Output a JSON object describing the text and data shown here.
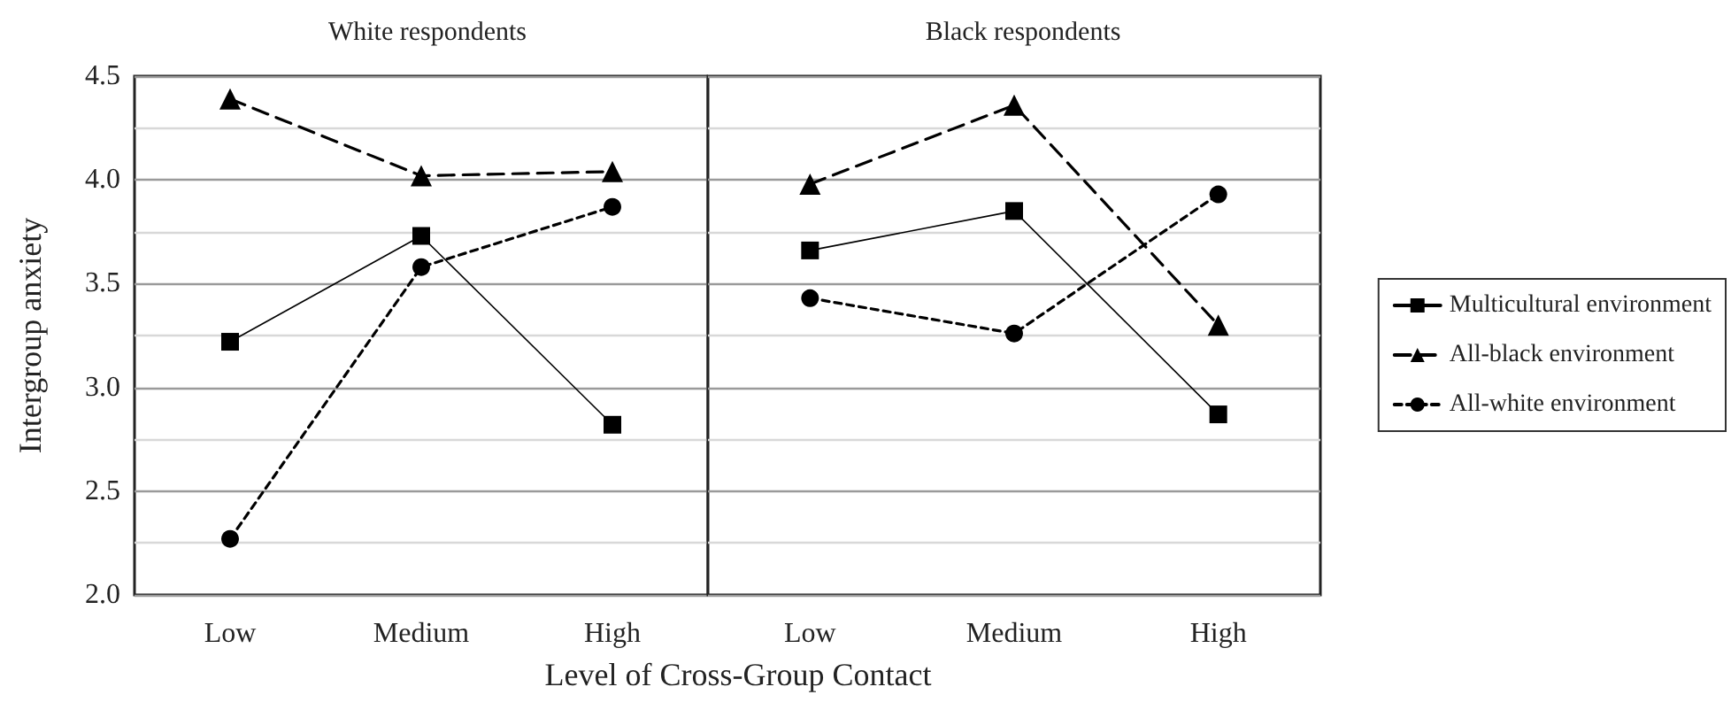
{
  "chart_data": [
    {
      "type": "line",
      "title": "White respondents",
      "xlabel": "Level of Cross-Group Contact",
      "ylabel": "Intergroup anxiety",
      "categories": [
        "Low",
        "Medium",
        "High"
      ],
      "series": [
        {
          "color": "#000000",
          "marker": "square",
          "line_style": "solid",
          "values": [
            3.22,
            3.73,
            2.82
          ]
        },
        {
          "color": "#000000",
          "marker": "triangle",
          "line_style": "dashed",
          "values": [
            4.39,
            4.02,
            4.04
          ]
        },
        {
          "color": "#000000",
          "marker": "circle",
          "line_style": "dotted",
          "values": [
            2.27,
            3.58,
            3.87
          ]
        }
      ],
      "ylim": [
        2,
        4.5
      ],
      "yticks": [
        {
          "value": 2,
          "label": "2.0"
        },
        {
          "value": 2.25,
          "label": null
        },
        {
          "value": 2.5,
          "label": "2.5"
        },
        {
          "value": 2.75,
          "label": null
        },
        {
          "value": 3,
          "label": "3.0"
        },
        {
          "value": 3.25,
          "label": null
        },
        {
          "value": 3.5,
          "label": "3.5"
        },
        {
          "value": 3.75,
          "label": null
        },
        {
          "value": 4,
          "label": "4.0"
        },
        {
          "value": 4.25,
          "label": null
        },
        {
          "value": 4.5,
          "label": "4.5"
        }
      ],
      "grid": "y",
      "legend": false
    },
    {
      "type": "line",
      "title": "Black respondents",
      "categories": [
        "Low",
        "Medium",
        "High"
      ],
      "series": [
        {
          "name": "Multicultural environment",
          "color": "#000000",
          "marker": "square",
          "line_style": "solid",
          "values": [
            3.66,
            3.85,
            2.87
          ]
        },
        {
          "name": "All-black environment",
          "color": "#000000",
          "marker": "triangle",
          "line_style": "dashed",
          "values": [
            3.98,
            4.36,
            3.3
          ]
        },
        {
          "name": "All-white environment",
          "color": "#000000",
          "marker": "circle",
          "line_style": "dotted",
          "values": [
            3.43,
            3.26,
            3.93
          ]
        }
      ],
      "ylim": [
        2,
        4.5
      ],
      "yticks": [
        2,
        2.25,
        2.5,
        2.75,
        3,
        3.25,
        3.5,
        3.75,
        4,
        4.25,
        4.5
      ],
      "grid": "y",
      "legend": "right",
      "tick_labels": "x"
    }
  ]
}
